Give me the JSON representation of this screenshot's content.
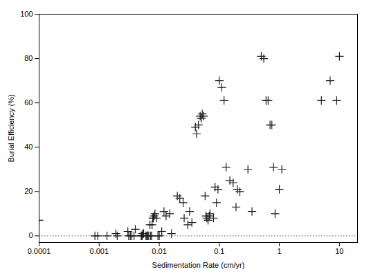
{
  "chart_data": {
    "type": "scatter",
    "xlabel": "Sedimentation Rate (cm/yr)",
    "ylabel": "Burial Efficiency (%)",
    "x": [
      0.0001,
      0.00085,
      0.00095,
      0.00135,
      0.0019,
      0.002,
      0.003,
      0.0031,
      0.0033,
      0.0035,
      0.0038,
      0.004,
      0.005,
      0.0051,
      0.0052,
      0.0053,
      0.0055,
      0.006,
      0.0062,
      0.0063,
      0.0065,
      0.0067,
      0.007,
      0.0072,
      0.0075,
      0.0076,
      0.0078,
      0.008,
      0.0082,
      0.0085,
      0.009,
      0.0095,
      0.01,
      0.011,
      0.012,
      0.013,
      0.015,
      0.016,
      0.02,
      0.022,
      0.025,
      0.026,
      0.03,
      0.032,
      0.035,
      0.04,
      0.042,
      0.045,
      0.048,
      0.05,
      0.052,
      0.055,
      0.058,
      0.06,
      0.062,
      0.065,
      0.068,
      0.07,
      0.08,
      0.085,
      0.09,
      0.095,
      0.1,
      0.11,
      0.12,
      0.13,
      0.15,
      0.17,
      0.19,
      0.2,
      0.22,
      0.3,
      0.35,
      0.5,
      0.55,
      0.6,
      0.65,
      0.7,
      0.75,
      0.8,
      0.85,
      1.0,
      1.1,
      5.0,
      7.0,
      9.0,
      10.0
    ],
    "values": [
      7,
      0,
      0,
      0,
      1,
      0,
      2,
      0,
      0,
      0,
      0,
      3,
      0,
      0,
      0,
      1,
      1,
      0,
      0,
      0,
      0,
      0,
      5,
      0,
      0,
      5,
      8,
      8,
      9,
      10,
      8,
      0,
      0,
      2,
      11,
      9,
      10,
      1,
      18,
      17,
      15,
      8,
      5,
      11,
      6,
      49,
      46,
      50,
      54,
      53,
      55,
      54,
      18,
      9,
      8,
      7,
      9,
      10,
      8,
      22,
      15,
      21,
      70,
      67,
      61,
      31,
      25,
      24,
      13,
      21,
      20,
      30,
      11,
      81,
      80,
      61,
      61,
      50,
      50,
      31,
      10,
      21,
      30,
      61,
      70,
      61,
      81
    ],
    "color": "#1a1a1a",
    "marker": "plus",
    "log": "x",
    "xlim": [
      0.0001,
      20
    ],
    "ylim": [
      -3,
      100
    ],
    "xticks": [
      0.0001,
      0.001,
      0.01,
      0.1,
      1,
      10
    ],
    "yticks": [
      0,
      20,
      40,
      60,
      80,
      100
    ],
    "grid": false,
    "hlines": [
      {
        "value": 0,
        "color": "#555555",
        "line_style": "dotted"
      }
    ]
  }
}
